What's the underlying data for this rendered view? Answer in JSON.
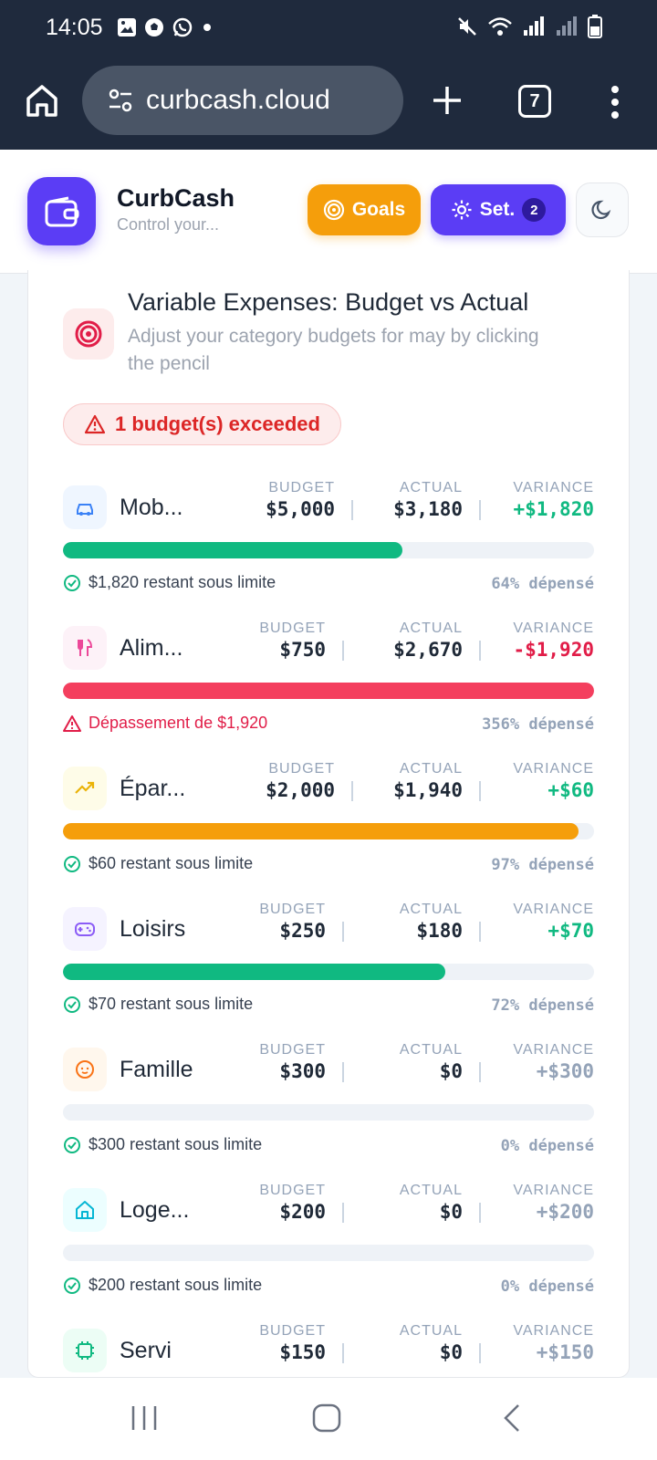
{
  "status": {
    "time": "14:05"
  },
  "browser": {
    "url": "curbcash.cloud",
    "tab_count": "7"
  },
  "app": {
    "name": "CurbCash",
    "tagline": "Control your...",
    "goals_label": "Goals",
    "settings_label": "Set.",
    "settings_badge": "2"
  },
  "section": {
    "title": "Variable Expenses: Budget vs Actual",
    "subtitle": "Adjust your category budgets for may by clicking the pencil",
    "alert": "1 budget(s) exceeded"
  },
  "labels": {
    "budget": "BUDGET",
    "actual": "ACTUAL",
    "variance": "VARIANCE"
  },
  "categories": [
    {
      "name": "Mob...",
      "budget": "$5,000",
      "actual": "$3,180",
      "variance": "+$1,820",
      "note": "$1,820 restant sous limite",
      "pct": "64% dépensé",
      "spent_fraction": 0.64,
      "state": "ok",
      "bar_color": "#10b981",
      "icon": "car-icon",
      "icon_bg": "#eff6ff",
      "icon_color": "#3b82f6"
    },
    {
      "name": "Alim...",
      "budget": "$750",
      "actual": "$2,670",
      "variance": "-$1,920",
      "note": "Dépassement de $1,920",
      "pct": "356% dépensé",
      "spent_fraction": 1.0,
      "state": "over",
      "bar_color": "#f43f5e",
      "icon": "utensils-icon",
      "icon_bg": "#fdf2f8",
      "icon_color": "#ec4899"
    },
    {
      "name": "Épar...",
      "budget": "$2,000",
      "actual": "$1,940",
      "variance": "+$60",
      "note": "$60 restant sous limite",
      "pct": "97% dépensé",
      "spent_fraction": 0.97,
      "state": "ok",
      "bar_color": "#f59e0b",
      "icon": "trending-up-icon",
      "icon_bg": "#fefce8",
      "icon_color": "#eab308"
    },
    {
      "name": "Loisirs",
      "budget": "$250",
      "actual": "$180",
      "variance": "+$70",
      "note": "$70 restant sous limite",
      "pct": "72% dépensé",
      "spent_fraction": 0.72,
      "state": "ok",
      "bar_color": "#10b981",
      "icon": "gamepad-icon",
      "icon_bg": "#f5f3ff",
      "icon_color": "#8b5cf6"
    },
    {
      "name": "Famille",
      "budget": "$300",
      "actual": "$0",
      "variance": "+$300",
      "note": "$300 restant sous limite",
      "pct": "0% dépensé",
      "spent_fraction": 0,
      "state": "zero",
      "bar_color": "#10b981",
      "icon": "baby-icon",
      "icon_bg": "#fff7ed",
      "icon_color": "#f97316"
    },
    {
      "name": "Loge...",
      "budget": "$200",
      "actual": "$0",
      "variance": "+$200",
      "note": "$200 restant sous limite",
      "pct": "0% dépensé",
      "spent_fraction": 0,
      "state": "zero",
      "bar_color": "#10b981",
      "icon": "home-icon",
      "icon_bg": "#ecfeff",
      "icon_color": "#06b6d4"
    },
    {
      "name": "Servi",
      "budget": "$150",
      "actual": "$0",
      "variance": "+$150",
      "note": "",
      "pct": "",
      "spent_fraction": 0,
      "state": "zero",
      "bar_color": "#10b981",
      "icon": "chip-icon",
      "icon_bg": "#ecfdf5",
      "icon_color": "#10b981"
    }
  ]
}
